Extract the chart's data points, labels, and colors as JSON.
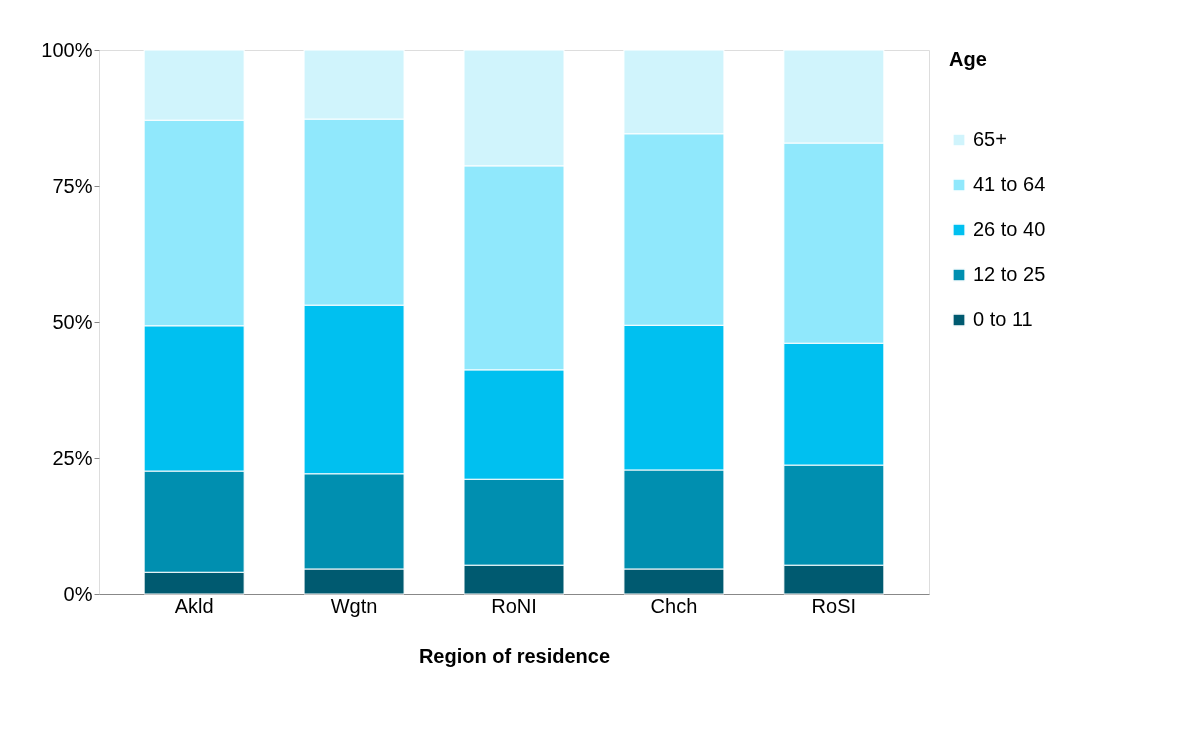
{
  "chart_data": {
    "type": "bar",
    "stacked": true,
    "xlabel": "Region of residence",
    "legend_title": "Age",
    "legend": "right",
    "grid": false,
    "categories": [
      "Akld",
      "Wgtn",
      "RoNI",
      "Chch",
      "RoSI"
    ],
    "ylim": [
      0,
      100
    ],
    "yticks": [
      {
        "value": 0,
        "label": "0%"
      },
      {
        "value": 25,
        "label": "25%"
      },
      {
        "value": 50,
        "label": "50%"
      },
      {
        "value": 75,
        "label": "75%"
      },
      {
        "value": 100,
        "label": "100%"
      }
    ],
    "series": [
      {
        "name": "0 to 11",
        "color": "#005a70",
        "values": [
          4.0,
          4.6,
          5.3,
          4.6,
          5.3
        ]
      },
      {
        "name": "12 to 25",
        "color": "#008fb0",
        "values": [
          18.6,
          17.5,
          15.8,
          18.2,
          18.4
        ]
      },
      {
        "name": "26 to 40",
        "color": "#00c0f0",
        "values": [
          26.7,
          31.0,
          20.1,
          26.6,
          22.4
        ]
      },
      {
        "name": "41 to 64",
        "color": "#90e8fc",
        "values": [
          37.8,
          34.2,
          37.5,
          35.2,
          36.8
        ]
      },
      {
        "name": "65+",
        "color": "#d0f4fc",
        "values": [
          12.9,
          12.7,
          21.3,
          15.4,
          17.1
        ]
      }
    ]
  }
}
